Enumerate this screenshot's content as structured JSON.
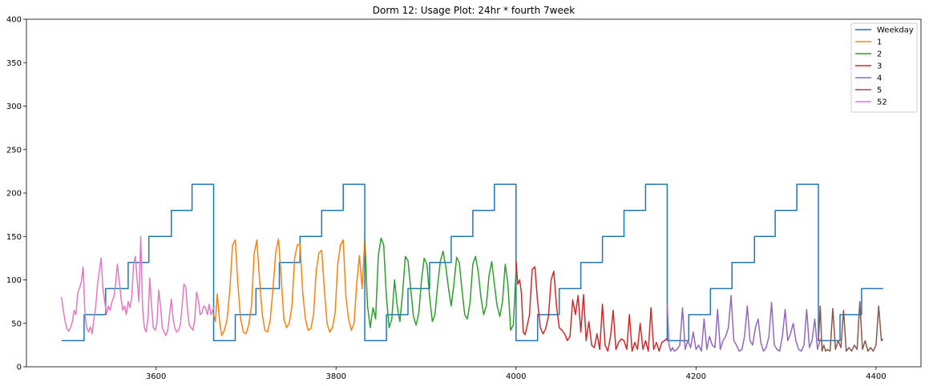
{
  "chart_data": {
    "type": "line",
    "title": "Dorm 12: Usage Plot: 24hr * fourth 7week",
    "xlabel": "",
    "ylabel": "",
    "xlim": [
      3456,
      4450
    ],
    "ylim": [
      0,
      400
    ],
    "xticks": [
      "3600",
      "3800",
      "4000",
      "4200",
      "4400"
    ],
    "yticks": [
      "0",
      "50",
      "100",
      "150",
      "200",
      "250",
      "300",
      "350",
      "400"
    ],
    "grid": false,
    "legend_position": "top-right",
    "series": [
      {
        "name": "Weekday",
        "color": "#1f77b4",
        "step": true,
        "x": [
          3495,
          3520,
          3520,
          3544,
          3544,
          3569,
          3569,
          3592,
          3592,
          3617,
          3617,
          3640,
          3640,
          3664,
          3664,
          3688,
          3688,
          3711,
          3711,
          3737,
          3737,
          3760,
          3760,
          3784,
          3784,
          3808,
          3808,
          3832,
          3832,
          3856,
          3856,
          3880,
          3880,
          3904,
          3904,
          3928,
          3928,
          3952,
          3952,
          3976,
          3976,
          4000,
          4000,
          4024,
          4024,
          4048,
          4048,
          4072,
          4072,
          4096,
          4096,
          4120,
          4120,
          4144,
          4144,
          4168,
          4168,
          4192,
          4192,
          4216,
          4216,
          4240,
          4240,
          4265,
          4265,
          4288,
          4288,
          4312,
          4312,
          4336,
          4336,
          4360,
          4360,
          4384,
          4384,
          4408
        ],
        "y": [
          30,
          30,
          60,
          60,
          90,
          90,
          120,
          120,
          150,
          150,
          180,
          180,
          210,
          210,
          30,
          30,
          60,
          60,
          90,
          90,
          120,
          120,
          150,
          150,
          180,
          180,
          210,
          210,
          30,
          30,
          60,
          60,
          90,
          90,
          120,
          120,
          150,
          150,
          180,
          180,
          210,
          210,
          30,
          30,
          60,
          60,
          90,
          90,
          120,
          120,
          150,
          150,
          180,
          180,
          210,
          210,
          30,
          30,
          60,
          60,
          90,
          90,
          120,
          120,
          150,
          150,
          180,
          180,
          210,
          210,
          30,
          30,
          60,
          60,
          90,
          90
        ]
      },
      {
        "name": "1",
        "color": "#ff7f0e",
        "x": [
          3664,
          3666,
          3668,
          3671,
          3673,
          3676,
          3679,
          3682,
          3685,
          3688,
          3691,
          3694,
          3697,
          3700,
          3703,
          3706,
          3709,
          3712,
          3715,
          3718,
          3721,
          3724,
          3727,
          3730,
          3733,
          3736,
          3739,
          3742,
          3745,
          3748,
          3751,
          3754,
          3757,
          3760,
          3763,
          3766,
          3769,
          3772,
          3775,
          3778,
          3781,
          3784,
          3787,
          3790,
          3793,
          3796,
          3799,
          3802,
          3805,
          3808,
          3811,
          3814,
          3817,
          3820,
          3823,
          3826,
          3829,
          3832
        ],
        "y": [
          60,
          52,
          84,
          48,
          36,
          42,
          55,
          88,
          140,
          146,
          95,
          55,
          40,
          38,
          48,
          70,
          130,
          146,
          100,
          60,
          42,
          40,
          55,
          90,
          132,
          147,
          105,
          55,
          45,
          50,
          70,
          125,
          140,
          142,
          85,
          55,
          42,
          44,
          60,
          110,
          131,
          134,
          90,
          50,
          40,
          45,
          62,
          120,
          140,
          146,
          80,
          55,
          42,
          50,
          95,
          128,
          90,
          147
        ]
      },
      {
        "name": "2",
        "color": "#2ca02c",
        "x": [
          3832,
          3835,
          3838,
          3841,
          3844,
          3847,
          3850,
          3853,
          3856,
          3859,
          3862,
          3865,
          3868,
          3871,
          3874,
          3877,
          3880,
          3883,
          3886,
          3889,
          3892,
          3895,
          3898,
          3901,
          3904,
          3907,
          3910,
          3913,
          3916,
          3919,
          3922,
          3925,
          3928,
          3931,
          3934,
          3937,
          3940,
          3943,
          3946,
          3949,
          3952,
          3955,
          3958,
          3961,
          3964,
          3967,
          3970,
          3973,
          3976,
          3979,
          3982,
          3985,
          3988,
          3991,
          3994,
          3997,
          4000
        ],
        "y": [
          147,
          70,
          45,
          68,
          55,
          128,
          148,
          140,
          80,
          45,
          55,
          100,
          70,
          52,
          85,
          127,
          122,
          90,
          58,
          48,
          62,
          100,
          125,
          118,
          80,
          52,
          60,
          95,
          122,
          133,
          115,
          90,
          70,
          95,
          126,
          120,
          88,
          60,
          55,
          75,
          118,
          127,
          110,
          80,
          60,
          70,
          105,
          121,
          95,
          70,
          58,
          75,
          118,
          95,
          42,
          48,
          110
        ]
      },
      {
        "name": "3",
        "color": "#d62728",
        "x": [
          4000,
          4002,
          4004,
          4006,
          4008,
          4010,
          4012,
          4015,
          4018,
          4021,
          4024,
          4027,
          4030,
          4033,
          4036,
          4039,
          4042,
          4045,
          4048,
          4051,
          4054,
          4057,
          4060,
          4063,
          4066,
          4069,
          4072,
          4075,
          4078,
          4081,
          4084,
          4087,
          4090,
          4093,
          4096,
          4099,
          4102,
          4105,
          4108,
          4111,
          4114,
          4117,
          4120,
          4123,
          4126,
          4129,
          4132,
          4135,
          4138,
          4141,
          4144,
          4147,
          4150,
          4153,
          4156,
          4159,
          4162,
          4165,
          4168
        ],
        "y": [
          122,
          95,
          100,
          85,
          40,
          37,
          45,
          60,
          112,
          115,
          75,
          45,
          38,
          44,
          58,
          100,
          110,
          70,
          45,
          42,
          38,
          30,
          35,
          77,
          60,
          82,
          40,
          83,
          30,
          52,
          25,
          22,
          38,
          20,
          72,
          25,
          18,
          35,
          65,
          20,
          28,
          32,
          30,
          20,
          60,
          18,
          28,
          20,
          50,
          20,
          30,
          18,
          68,
          20,
          28,
          18,
          28,
          30,
          33
        ]
      },
      {
        "name": "4",
        "color": "#9467bd",
        "x": [
          4168,
          4170,
          4172,
          4174,
          4176,
          4179,
          4182,
          4185,
          4188,
          4191,
          4194,
          4197,
          4200,
          4203,
          4206,
          4209,
          4212,
          4215,
          4218,
          4221,
          4224,
          4227,
          4230,
          4233,
          4236,
          4239,
          4242,
          4245,
          4248,
          4251,
          4254,
          4257,
          4260,
          4263,
          4266,
          4269,
          4272,
          4275,
          4278,
          4281,
          4284,
          4287,
          4290,
          4293,
          4296,
          4299,
          4302,
          4305,
          4308,
          4311,
          4314,
          4317,
          4320,
          4323,
          4326,
          4329,
          4332,
          4335,
          4338
        ],
        "y": [
          72,
          25,
          18,
          22,
          18,
          20,
          25,
          68,
          20,
          30,
          22,
          40,
          20,
          25,
          18,
          55,
          20,
          35,
          25,
          22,
          66,
          20,
          30,
          35,
          45,
          82,
          30,
          25,
          18,
          20,
          35,
          70,
          30,
          25,
          45,
          55,
          28,
          18,
          22,
          35,
          74,
          25,
          20,
          18,
          35,
          66,
          30,
          38,
          50,
          30,
          20,
          18,
          25,
          66,
          22,
          30,
          55,
          20,
          32
        ]
      },
      {
        "name": "5",
        "color": "#8c564b",
        "x": [
          4336,
          4338,
          4340,
          4342,
          4344,
          4346,
          4349,
          4352,
          4355,
          4358,
          4361,
          4364,
          4367,
          4370,
          4373,
          4376,
          4379,
          4382,
          4385,
          4388,
          4391,
          4394,
          4397,
          4400,
          4403,
          4406,
          4408
        ],
        "y": [
          30,
          70,
          18,
          25,
          18,
          20,
          18,
          67,
          20,
          30,
          22,
          65,
          18,
          22,
          18,
          25,
          20,
          75,
          20,
          30,
          18,
          22,
          18,
          25,
          70,
          30,
          32
        ]
      },
      {
        "name": "52",
        "color": "#e377c2",
        "x": [
          3495,
          3497,
          3499,
          3501,
          3503,
          3505,
          3507,
          3509,
          3511,
          3513,
          3515,
          3517,
          3519,
          3521,
          3523,
          3525,
          3527,
          3529,
          3531,
          3533,
          3535,
          3537,
          3539,
          3541,
          3543,
          3545,
          3547,
          3549,
          3551,
          3553,
          3555,
          3557,
          3559,
          3561,
          3563,
          3565,
          3567,
          3569,
          3571,
          3573,
          3575,
          3577,
          3579,
          3581,
          3583,
          3585,
          3587,
          3589,
          3591,
          3593,
          3595,
          3597,
          3599,
          3601,
          3603,
          3605,
          3607,
          3609,
          3611,
          3613,
          3615,
          3617,
          3619,
          3621,
          3623,
          3625,
          3627,
          3629,
          3631,
          3633,
          3635,
          3637,
          3639,
          3641,
          3643,
          3645,
          3647,
          3649,
          3651,
          3653,
          3655,
          3657,
          3659,
          3661,
          3663,
          3665
        ],
        "y": [
          80,
          65,
          52,
          44,
          41,
          45,
          52,
          65,
          60,
          85,
          90,
          98,
          115,
          60,
          45,
          40,
          46,
          38,
          55,
          70,
          95,
          110,
          125,
          90,
          75,
          60,
          70,
          65,
          75,
          80,
          95,
          118,
          100,
          80,
          65,
          70,
          60,
          75,
          68,
          80,
          118,
          127,
          100,
          75,
          150,
          70,
          45,
          40,
          55,
          102,
          70,
          45,
          42,
          50,
          88,
          70,
          45,
          40,
          36,
          42,
          60,
          78,
          55,
          44,
          40,
          42,
          48,
          70,
          95,
          92,
          65,
          48,
          45,
          42,
          55,
          86,
          78,
          60,
          62,
          70,
          68,
          60,
          72,
          60,
          65,
          70
        ]
      }
    ]
  }
}
